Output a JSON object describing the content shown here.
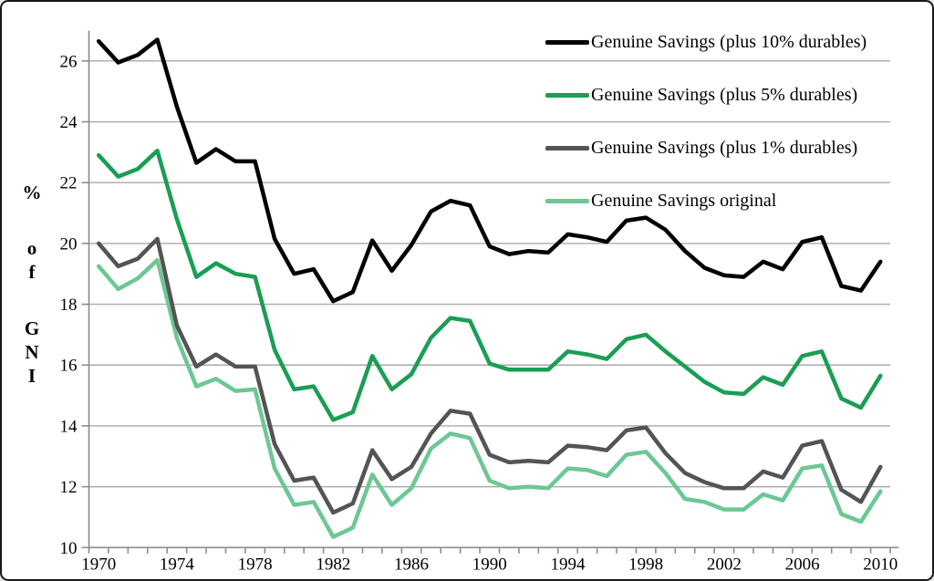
{
  "chart_data": {
    "type": "line",
    "title": "",
    "ylabel": "% of GNI",
    "xlabel": "",
    "grid": true,
    "legend_position": "top-right",
    "ylim": [
      10,
      27
    ],
    "y_ticks": [
      10,
      12,
      14,
      16,
      18,
      20,
      22,
      24,
      26
    ],
    "x_ticks": [
      1970,
      1974,
      1978,
      1982,
      1986,
      1990,
      1994,
      1998,
      2002,
      2006,
      2010
    ],
    "x": [
      1970,
      1971,
      1972,
      1973,
      1974,
      1975,
      1976,
      1977,
      1978,
      1979,
      1980,
      1981,
      1982,
      1983,
      1984,
      1985,
      1986,
      1987,
      1988,
      1989,
      1990,
      1991,
      1992,
      1993,
      1994,
      1995,
      1996,
      1997,
      1998,
      1999,
      2000,
      2001,
      2002,
      2003,
      2004,
      2005,
      2006,
      2007,
      2008,
      2009,
      2010
    ],
    "series": [
      {
        "name": "Genuine Savings (plus 10% durables)",
        "color": "#000000",
        "values": [
          26.65,
          25.95,
          26.2,
          26.7,
          24.5,
          22.65,
          23.1,
          22.7,
          22.7,
          20.15,
          19.0,
          19.15,
          18.1,
          18.4,
          20.1,
          19.1,
          19.95,
          21.05,
          21.4,
          21.25,
          19.9,
          19.65,
          19.75,
          19.7,
          20.3,
          20.2,
          20.05,
          20.75,
          20.85,
          20.45,
          19.75,
          19.2,
          18.95,
          18.9,
          19.4,
          19.15,
          20.05,
          20.2,
          18.6,
          18.45,
          19.4
        ]
      },
      {
        "name": "Genuine Savings (plus 5% durables)",
        "color": "#1a9e54",
        "values": [
          22.9,
          22.2,
          22.45,
          23.05,
          20.8,
          18.9,
          19.35,
          19.0,
          18.9,
          16.5,
          15.2,
          15.3,
          14.2,
          14.45,
          16.3,
          15.2,
          15.7,
          16.9,
          17.55,
          17.45,
          16.05,
          15.85,
          15.85,
          15.85,
          16.45,
          16.35,
          16.2,
          16.85,
          17.0,
          16.45,
          15.95,
          15.45,
          15.1,
          15.05,
          15.6,
          15.35,
          16.3,
          16.45,
          14.9,
          14.6,
          15.65
        ]
      },
      {
        "name": "Genuine Savings (plus 1% durables)",
        "color": "#545454",
        "values": [
          20.0,
          19.25,
          19.5,
          20.15,
          17.3,
          15.95,
          16.35,
          15.95,
          15.95,
          13.4,
          12.2,
          12.3,
          11.15,
          11.45,
          13.2,
          12.25,
          12.65,
          13.75,
          14.5,
          14.4,
          13.05,
          12.8,
          12.85,
          12.8,
          13.35,
          13.3,
          13.2,
          13.85,
          13.95,
          13.1,
          12.45,
          12.15,
          11.95,
          11.95,
          12.5,
          12.3,
          13.35,
          13.5,
          11.9,
          11.5,
          12.65
        ]
      },
      {
        "name": "Genuine Savings original",
        "color": "#6cc893",
        "values": [
          19.25,
          18.5,
          18.85,
          19.45,
          16.9,
          15.3,
          15.55,
          15.15,
          15.2,
          12.6,
          11.4,
          11.5,
          10.35,
          10.65,
          12.4,
          11.4,
          11.95,
          13.25,
          13.75,
          13.6,
          12.2,
          11.95,
          12.0,
          11.95,
          12.6,
          12.55,
          12.35,
          13.05,
          13.15,
          12.45,
          11.6,
          11.5,
          11.25,
          11.25,
          11.75,
          11.55,
          12.6,
          12.7,
          11.1,
          10.85,
          11.85
        ]
      }
    ],
    "axis_color": "#8c8c8c",
    "grid_color": "#aaaaaa",
    "text_color": "#000000"
  }
}
